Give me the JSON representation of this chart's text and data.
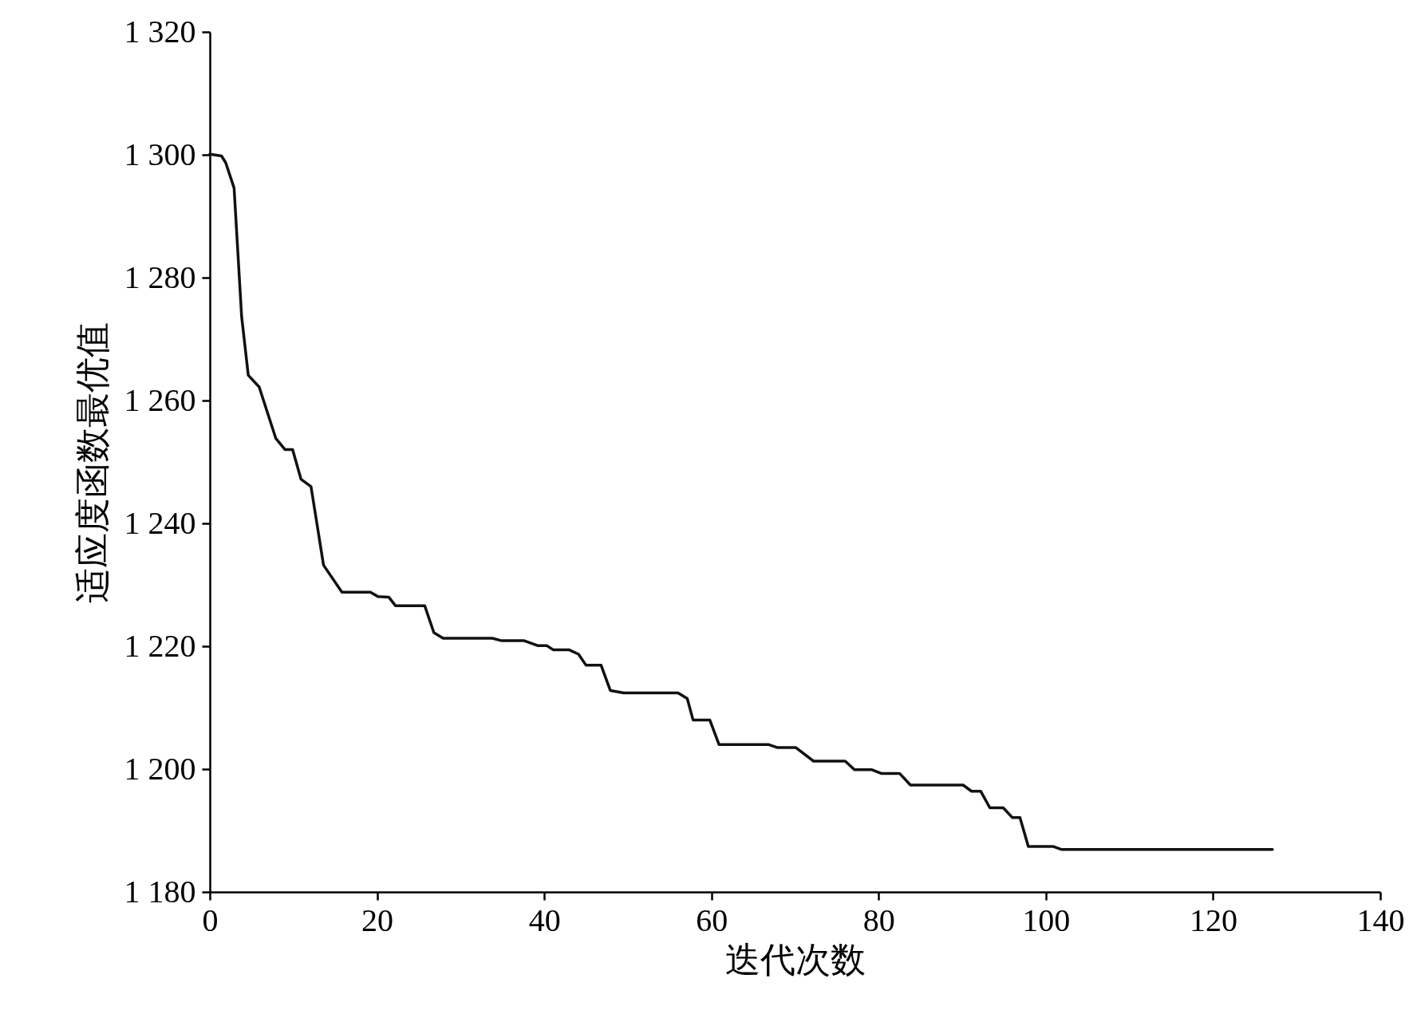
{
  "chart_data": {
    "type": "line",
    "xlabel": "迭代次数",
    "ylabel": "适应度函数最优值",
    "x": [
      0,
      1.4,
      1.9,
      2.9,
      3.8,
      4.6,
      5.9,
      7.9,
      9,
      9.9,
      10.9,
      12.1,
      13.6,
      15.8,
      19.2,
      20.1,
      21.4,
      22.2,
      25.7,
      26.8,
      27.9,
      33.8,
      34.9,
      37.6,
      39.2,
      40.3,
      41.1,
      43,
      44.1,
      45,
      46.8,
      47.9,
      49.5,
      56,
      57.1,
      57.8,
      59.8,
      60.9,
      66.8,
      67.9,
      70.1,
      72.2,
      76,
      77.1,
      79.2,
      80.3,
      82.5,
      83.8,
      90.1,
      91.1,
      92.2,
      93.3,
      94.9,
      96,
      96.9,
      97.9,
      100.9,
      101.9,
      127.1
    ],
    "series": [
      {
        "color": "#111111",
        "values": [
          1300.1,
          1299.8,
          1298.7,
          1294.6,
          1273.7,
          1264.1,
          1262.2,
          1253.8,
          1252,
          1252,
          1247.2,
          1246,
          1233.2,
          1228.8,
          1228.8,
          1228.1,
          1228,
          1226.6,
          1226.6,
          1222.2,
          1221.3,
          1221.3,
          1220.9,
          1220.9,
          1220.1,
          1220.1,
          1219.4,
          1219.4,
          1218.7,
          1216.9,
          1216.9,
          1212.8,
          1212.4,
          1212.4,
          1211.5,
          1208,
          1208,
          1204,
          1204,
          1203.5,
          1203.5,
          1201.3,
          1201.3,
          1199.9,
          1199.9,
          1199.3,
          1199.3,
          1197.4,
          1197.4,
          1196.4,
          1196.4,
          1193.7,
          1193.7,
          1192.1,
          1192.1,
          1187.4,
          1187.4,
          1186.9,
          1186.9
        ]
      }
    ],
    "xlim": [
      0,
      140
    ],
    "xticks": [
      0,
      20,
      40,
      60,
      80,
      100,
      120,
      140
    ],
    "ylim": [
      1180,
      1320
    ],
    "yticks": [
      {
        "value": 1180,
        "label": "1 180"
      },
      {
        "value": 1200,
        "label": "1 200"
      },
      {
        "value": 1220,
        "label": "1 220"
      },
      {
        "value": 1240,
        "label": "1 240"
      },
      {
        "value": 1260,
        "label": "1 260"
      },
      {
        "value": 1280,
        "label": "1 280"
      },
      {
        "value": 1300,
        "label": "1 300"
      },
      {
        "value": 1320,
        "label": "1 320"
      }
    ],
    "grid": false,
    "marker": "none",
    "line_style": "solid"
  }
}
